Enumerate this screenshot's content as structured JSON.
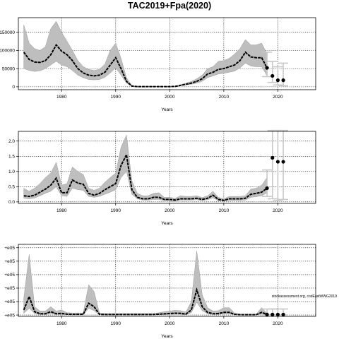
{
  "title": "TAC2019+Fpa(2020)",
  "annotation": "stockassessment.org, codEastWWG2019",
  "colors": {
    "band": "#bebebe",
    "band_edge": "#9a9a9a",
    "line": "#000000",
    "forecast": "#c8c8c8"
  },
  "chart_data": [
    {
      "type": "line",
      "xlabel": "Years",
      "ylabel": "",
      "xlim": [
        1972,
        2027
      ],
      "ylim": [
        -8000,
        190000
      ],
      "x_ticks": [
        1980,
        1990,
        2000,
        2010,
        2020
      ],
      "y_ticks": [
        0,
        50000,
        100000,
        150000
      ],
      "y_tick_labels": [
        "0",
        "50000",
        "100000",
        "150000"
      ],
      "grid": true,
      "x": [
        1973,
        1974,
        1975,
        1976,
        1977,
        1978,
        1979,
        1980,
        1981,
        1982,
        1983,
        1984,
        1985,
        1986,
        1987,
        1988,
        1989,
        1990,
        1991,
        1992,
        1993,
        1994,
        1995,
        1996,
        1997,
        1998,
        1999,
        2000,
        2001,
        2002,
        2003,
        2004,
        2005,
        2006,
        2007,
        2008,
        2009,
        2010,
        2011,
        2012,
        2013,
        2014,
        2015,
        2016,
        2017,
        2018
      ],
      "series": [
        {
          "role": "estimate",
          "values": [
            95000,
            75000,
            68000,
            67000,
            72000,
            88000,
            115000,
            98000,
            88000,
            72000,
            50000,
            38000,
            32000,
            30000,
            32000,
            40000,
            60000,
            80000,
            50000,
            15000,
            2000,
            500,
            500,
            500,
            500,
            500,
            500,
            500,
            1000,
            4000,
            7000,
            10000,
            15000,
            22000,
            35000,
            40000,
            48000,
            50000,
            55000,
            60000,
            72000,
            95000,
            82000,
            80000,
            80000,
            52000
          ]
        },
        {
          "role": "lower",
          "values": [
            50000,
            45000,
            42000,
            44000,
            50000,
            60000,
            70000,
            60000,
            55000,
            45000,
            32000,
            25000,
            20000,
            19000,
            20000,
            26000,
            38000,
            52000,
            32000,
            10000,
            1000,
            200,
            200,
            200,
            200,
            200,
            200,
            200,
            500,
            2500,
            5000,
            7000,
            10000,
            15000,
            25000,
            30000,
            35000,
            37000,
            40000,
            43000,
            52000,
            65000,
            57000,
            55000,
            55000,
            30000
          ]
        },
        {
          "role": "upper",
          "values": [
            170000,
            120000,
            105000,
            100000,
            110000,
            160000,
            180000,
            150000,
            125000,
            100000,
            72000,
            55000,
            48000,
            45000,
            48000,
            62000,
            100000,
            120000,
            78000,
            25000,
            3000,
            900,
            900,
            900,
            900,
            900,
            900,
            900,
            1500,
            5500,
            10000,
            15000,
            22000,
            32000,
            50000,
            55000,
            70000,
            72000,
            78000,
            90000,
            105000,
            130000,
            115000,
            115000,
            120000,
            90000
          ]
        }
      ],
      "forecast": {
        "x": [
          2018,
          2019,
          2020,
          2021
        ],
        "values": [
          52000,
          30000,
          18000,
          18000
        ],
        "lower": [
          28000,
          12000,
          5000,
          3000
        ],
        "upper": [
          95000,
          70000,
          55000,
          65000
        ]
      }
    },
    {
      "type": "line",
      "xlabel": "Years",
      "ylabel": "",
      "xlim": [
        1972,
        2027
      ],
      "ylim": [
        -0.05,
        2.32
      ],
      "x_ticks": [
        1980,
        1990,
        2000,
        2010,
        2020
      ],
      "y_ticks": [
        0,
        0.5,
        1,
        1.5,
        2
      ],
      "y_tick_labels": [
        "0.0",
        "0.5",
        "1.0",
        "1.5",
        "2.0"
      ],
      "grid": true,
      "x": [
        1973,
        1974,
        1975,
        1976,
        1977,
        1978,
        1979,
        1980,
        1981,
        1982,
        1983,
        1984,
        1985,
        1986,
        1987,
        1988,
        1989,
        1990,
        1991,
        1992,
        1993,
        1994,
        1995,
        1996,
        1997,
        1998,
        1999,
        2000,
        2001,
        2002,
        2003,
        2004,
        2005,
        2006,
        2007,
        2008,
        2009,
        2010,
        2011,
        2012,
        2013,
        2014,
        2015,
        2016,
        2017,
        2018
      ],
      "series": [
        {
          "role": "estimate",
          "values": [
            0.2,
            0.18,
            0.22,
            0.32,
            0.42,
            0.55,
            0.78,
            0.3,
            0.3,
            0.72,
            0.62,
            0.58,
            0.28,
            0.22,
            0.28,
            0.4,
            0.5,
            0.6,
            1.2,
            1.55,
            0.4,
            0.15,
            0.1,
            0.1,
            0.15,
            0.15,
            0.08,
            0.08,
            0.06,
            0.1,
            0.1,
            0.1,
            0.12,
            0.08,
            0.12,
            0.22,
            0.08,
            0.05,
            0.1,
            0.1,
            0.1,
            0.12,
            0.25,
            0.28,
            0.32,
            0.45
          ]
        },
        {
          "role": "lower",
          "values": [
            0.12,
            0.1,
            0.13,
            0.2,
            0.28,
            0.35,
            0.5,
            0.2,
            0.18,
            0.45,
            0.4,
            0.38,
            0.18,
            0.15,
            0.18,
            0.25,
            0.32,
            0.4,
            0.8,
            1.0,
            0.25,
            0.1,
            0.06,
            0.06,
            0.08,
            0.08,
            0.04,
            0.04,
            0.03,
            0.06,
            0.06,
            0.06,
            0.07,
            0.04,
            0.07,
            0.13,
            0.04,
            0.02,
            0.05,
            0.05,
            0.05,
            0.06,
            0.15,
            0.17,
            0.2,
            0.3
          ]
        },
        {
          "role": "upper",
          "values": [
            0.45,
            0.35,
            0.45,
            0.6,
            0.8,
            0.95,
            1.3,
            0.55,
            0.6,
            1.15,
            1.0,
            0.9,
            0.45,
            0.38,
            0.45,
            0.65,
            0.8,
            0.95,
            1.8,
            2.2,
            0.7,
            0.28,
            0.2,
            0.2,
            0.28,
            0.3,
            0.15,
            0.15,
            0.12,
            0.2,
            0.18,
            0.18,
            0.2,
            0.14,
            0.2,
            0.35,
            0.15,
            0.1,
            0.18,
            0.18,
            0.18,
            0.2,
            0.42,
            0.45,
            0.55,
            0.8
          ]
        }
      ],
      "forecast": {
        "x": [
          2018,
          2019,
          2020,
          2021
        ],
        "values": [
          0.45,
          1.45,
          1.32,
          1.32
        ],
        "lower": [
          0.18,
          0.1,
          0.05,
          0.08
        ],
        "upper": [
          1.05,
          2.35,
          2.35,
          2.35
        ]
      }
    },
    {
      "type": "line",
      "xlabel": "Years",
      "ylabel": "",
      "xlim": [
        1972,
        2027
      ],
      "ylim": [
        -40000,
        2100000
      ],
      "x_ticks": [
        1980,
        1990,
        2000,
        2010,
        2020
      ],
      "y_ticks": [
        0,
        400000,
        800000,
        1200000,
        1600000,
        2000000
      ],
      "y_tick_labels": [
        "+e05",
        "+e05",
        "+e05",
        "+e05",
        "+e05",
        "+e05"
      ],
      "grid": true,
      "x": [
        1973,
        1974,
        1975,
        1976,
        1977,
        1978,
        1979,
        1980,
        1981,
        1982,
        1983,
        1984,
        1985,
        1986,
        1987,
        1988,
        1989,
        1990,
        1991,
        1992,
        1993,
        1994,
        1995,
        1996,
        1997,
        1998,
        1999,
        2000,
        2001,
        2002,
        2003,
        2004,
        2005,
        2006,
        2007,
        2008,
        2009,
        2010,
        2011,
        2012,
        2013,
        2014,
        2015,
        2016,
        2017,
        2018
      ],
      "series": [
        {
          "role": "estimate",
          "values": [
            150000,
            550000,
            100000,
            40000,
            40000,
            100000,
            40000,
            50000,
            25000,
            20000,
            20000,
            20000,
            350000,
            250000,
            20000,
            15000,
            15000,
            15000,
            15000,
            15000,
            15000,
            15000,
            15000,
            15000,
            15000,
            25000,
            35000,
            45000,
            55000,
            50000,
            30000,
            150000,
            750000,
            250000,
            80000,
            40000,
            45000,
            80000,
            80000,
            20000,
            10000,
            10000,
            10000,
            10000,
            80000,
            15000
          ]
        },
        {
          "role": "lower",
          "values": [
            50000,
            200000,
            40000,
            15000,
            15000,
            40000,
            15000,
            20000,
            10000,
            8000,
            8000,
            8000,
            200000,
            130000,
            8000,
            6000,
            6000,
            6000,
            6000,
            6000,
            6000,
            6000,
            6000,
            6000,
            6000,
            10000,
            15000,
            20000,
            25000,
            22000,
            12000,
            70000,
            380000,
            130000,
            35000,
            15000,
            18000,
            35000,
            35000,
            8000,
            4000,
            4000,
            4000,
            4000,
            30000,
            5000
          ]
        },
        {
          "role": "upper",
          "values": [
            500000,
            1800000,
            250000,
            120000,
            120000,
            250000,
            120000,
            150000,
            70000,
            60000,
            60000,
            60000,
            900000,
            700000,
            60000,
            45000,
            45000,
            45000,
            45000,
            45000,
            45000,
            45000,
            45000,
            45000,
            45000,
            70000,
            100000,
            120000,
            140000,
            130000,
            90000,
            400000,
            1900000,
            600000,
            220000,
            120000,
            130000,
            220000,
            220000,
            60000,
            30000,
            30000,
            30000,
            30000,
            220000,
            50000
          ]
        }
      ],
      "forecast": {
        "x": [
          2018,
          2019,
          2020,
          2021
        ],
        "values": [
          15000,
          15000,
          15000,
          15000
        ],
        "lower": [
          2000,
          2000,
          2000,
          2000
        ],
        "upper": [
          180000,
          180000,
          180000,
          180000
        ]
      }
    }
  ]
}
